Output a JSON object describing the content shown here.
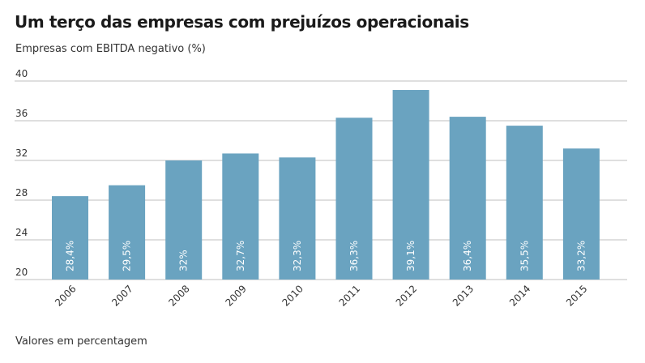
{
  "title": "Um terço das empresas com prejuízos operacionais",
  "subtitle": "Empresas com EBITDA negativo (%)",
  "note": "Valores em percentagem",
  "colors": {
    "bar": "#6aa3c0",
    "grid": "#bfbfbf",
    "bar_label": "#ffffff"
  },
  "chart_data": {
    "type": "bar",
    "title": "Um terço das empresas com prejuízos operacionais",
    "subtitle": "Empresas com EBITDA negativo (%)",
    "xlabel": "",
    "ylabel": "",
    "ylim": [
      20,
      40
    ],
    "yticks": [
      20,
      24,
      28,
      32,
      36,
      40
    ],
    "grid": true,
    "categories": [
      "2006",
      "2007",
      "2008",
      "2009",
      "2010",
      "2011",
      "2012",
      "2013",
      "2014",
      "2015"
    ],
    "values": [
      28.4,
      29.5,
      32,
      32.7,
      32.3,
      36.3,
      39.1,
      36.4,
      35.5,
      33.2
    ],
    "data_labels": [
      "28,4%",
      "29,5%",
      "32%",
      "32,7%",
      "32,3%",
      "36,3%",
      "39,1%",
      "36,4%",
      "35,5%",
      "33,2%"
    ]
  }
}
